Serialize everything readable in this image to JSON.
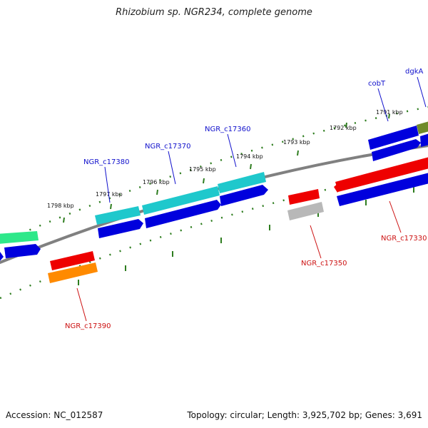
{
  "title": "Rhizobium sp. NGR234, complete genome",
  "footer": {
    "accession": "Accession: NC_012587",
    "summary": "Topology: circular; Length: 3,925,702 bp; Genes: 3,691"
  },
  "tick_labels": [
    "1791 kbp",
    "1792 kbp",
    "1793 kbp",
    "1794 kbp",
    "1795 kbp",
    "1796 kbp",
    "1797 kbp",
    "1798 kbp"
  ],
  "gene_labels": {
    "forward": [
      "dgkA",
      "cobT",
      "NGR_c17360",
      "NGR_c17370",
      "NGR_c17380"
    ],
    "reverse": [
      "NGR_c17330",
      "NGR_c17350",
      "NGR_c17390"
    ]
  },
  "colors": {
    "forward_label": "#1010cc",
    "reverse_label": "#cc1010",
    "backbone": "#808080",
    "ruler": "#2e7d1f",
    "cds_blue": "#0000dd",
    "cds_cyan": "#1fc8cc",
    "cds_green": "#2ee88a",
    "cds_olive": "#6f8a2a",
    "cds_red": "#ee0000",
    "cds_orange": "#ff8a00",
    "cds_gray": "#b8b8b8"
  }
}
